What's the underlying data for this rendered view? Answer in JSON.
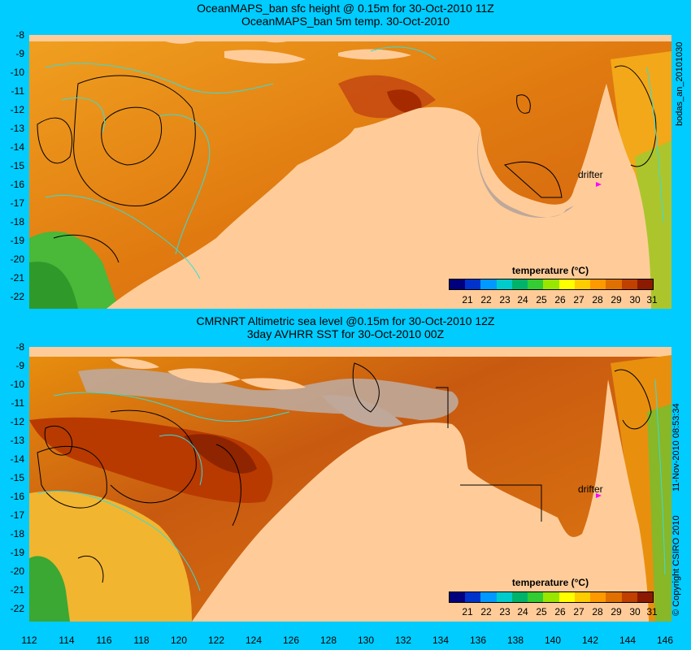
{
  "top": {
    "title1": "OceanMAPS_ban sfc height @ 0.15m for 30-Oct-2010 11Z",
    "title2": "OceanMAPS_ban 5m temp. 30-Oct-2010",
    "side_label": "bodas_an_20101030",
    "y_ticks": [
      "-8",
      "-9",
      "-10",
      "-11",
      "-12",
      "-13",
      "-14",
      "-15",
      "-16",
      "-17",
      "-18",
      "-19",
      "-20",
      "-21",
      "-22"
    ]
  },
  "bottom": {
    "title1": "CMRNRT Altimetric sea level  @0.15m  for 30-Oct-2010 12Z",
    "title2": "3day AVHRR SST for 30-Oct-2010 00Z",
    "side_label": "11-Nov-2010 08:53:34",
    "copyright": "© Copyright CSIRO 2010",
    "y_ticks": [
      "-8",
      "-9",
      "-10",
      "-11",
      "-12",
      "-13",
      "-14",
      "-15",
      "-16",
      "-17",
      "-18",
      "-19",
      "-20",
      "-21",
      "-22"
    ]
  },
  "x_ticks": [
    "112",
    "114",
    "116",
    "118",
    "120",
    "122",
    "124",
    "126",
    "128",
    "130",
    "132",
    "134",
    "136",
    "138",
    "140",
    "142",
    "144",
    "146"
  ],
  "legend": {
    "title": "temperature (°C)",
    "ticks": [
      "21",
      "22",
      "23",
      "24",
      "25",
      "26",
      "27",
      "28",
      "29",
      "30",
      "31"
    ],
    "colors": [
      "#00007f",
      "#0033cc",
      "#0099ff",
      "#00cccc",
      "#00b36b",
      "#33cc33",
      "#99e600",
      "#ffff00",
      "#ffcc00",
      "#ff9900",
      "#e07000",
      "#c04000",
      "#8b1a00"
    ]
  },
  "annotations": {
    "drifter": "drifter"
  },
  "colors": {
    "background": "#00ccff",
    "land": "#ffcc99",
    "shallow": "#bfa89a",
    "sea_warm": "#e8900e",
    "sea_hot": "#b83a00",
    "sea_cool": "#33aa33",
    "contour_cyan": "#33dddd"
  }
}
